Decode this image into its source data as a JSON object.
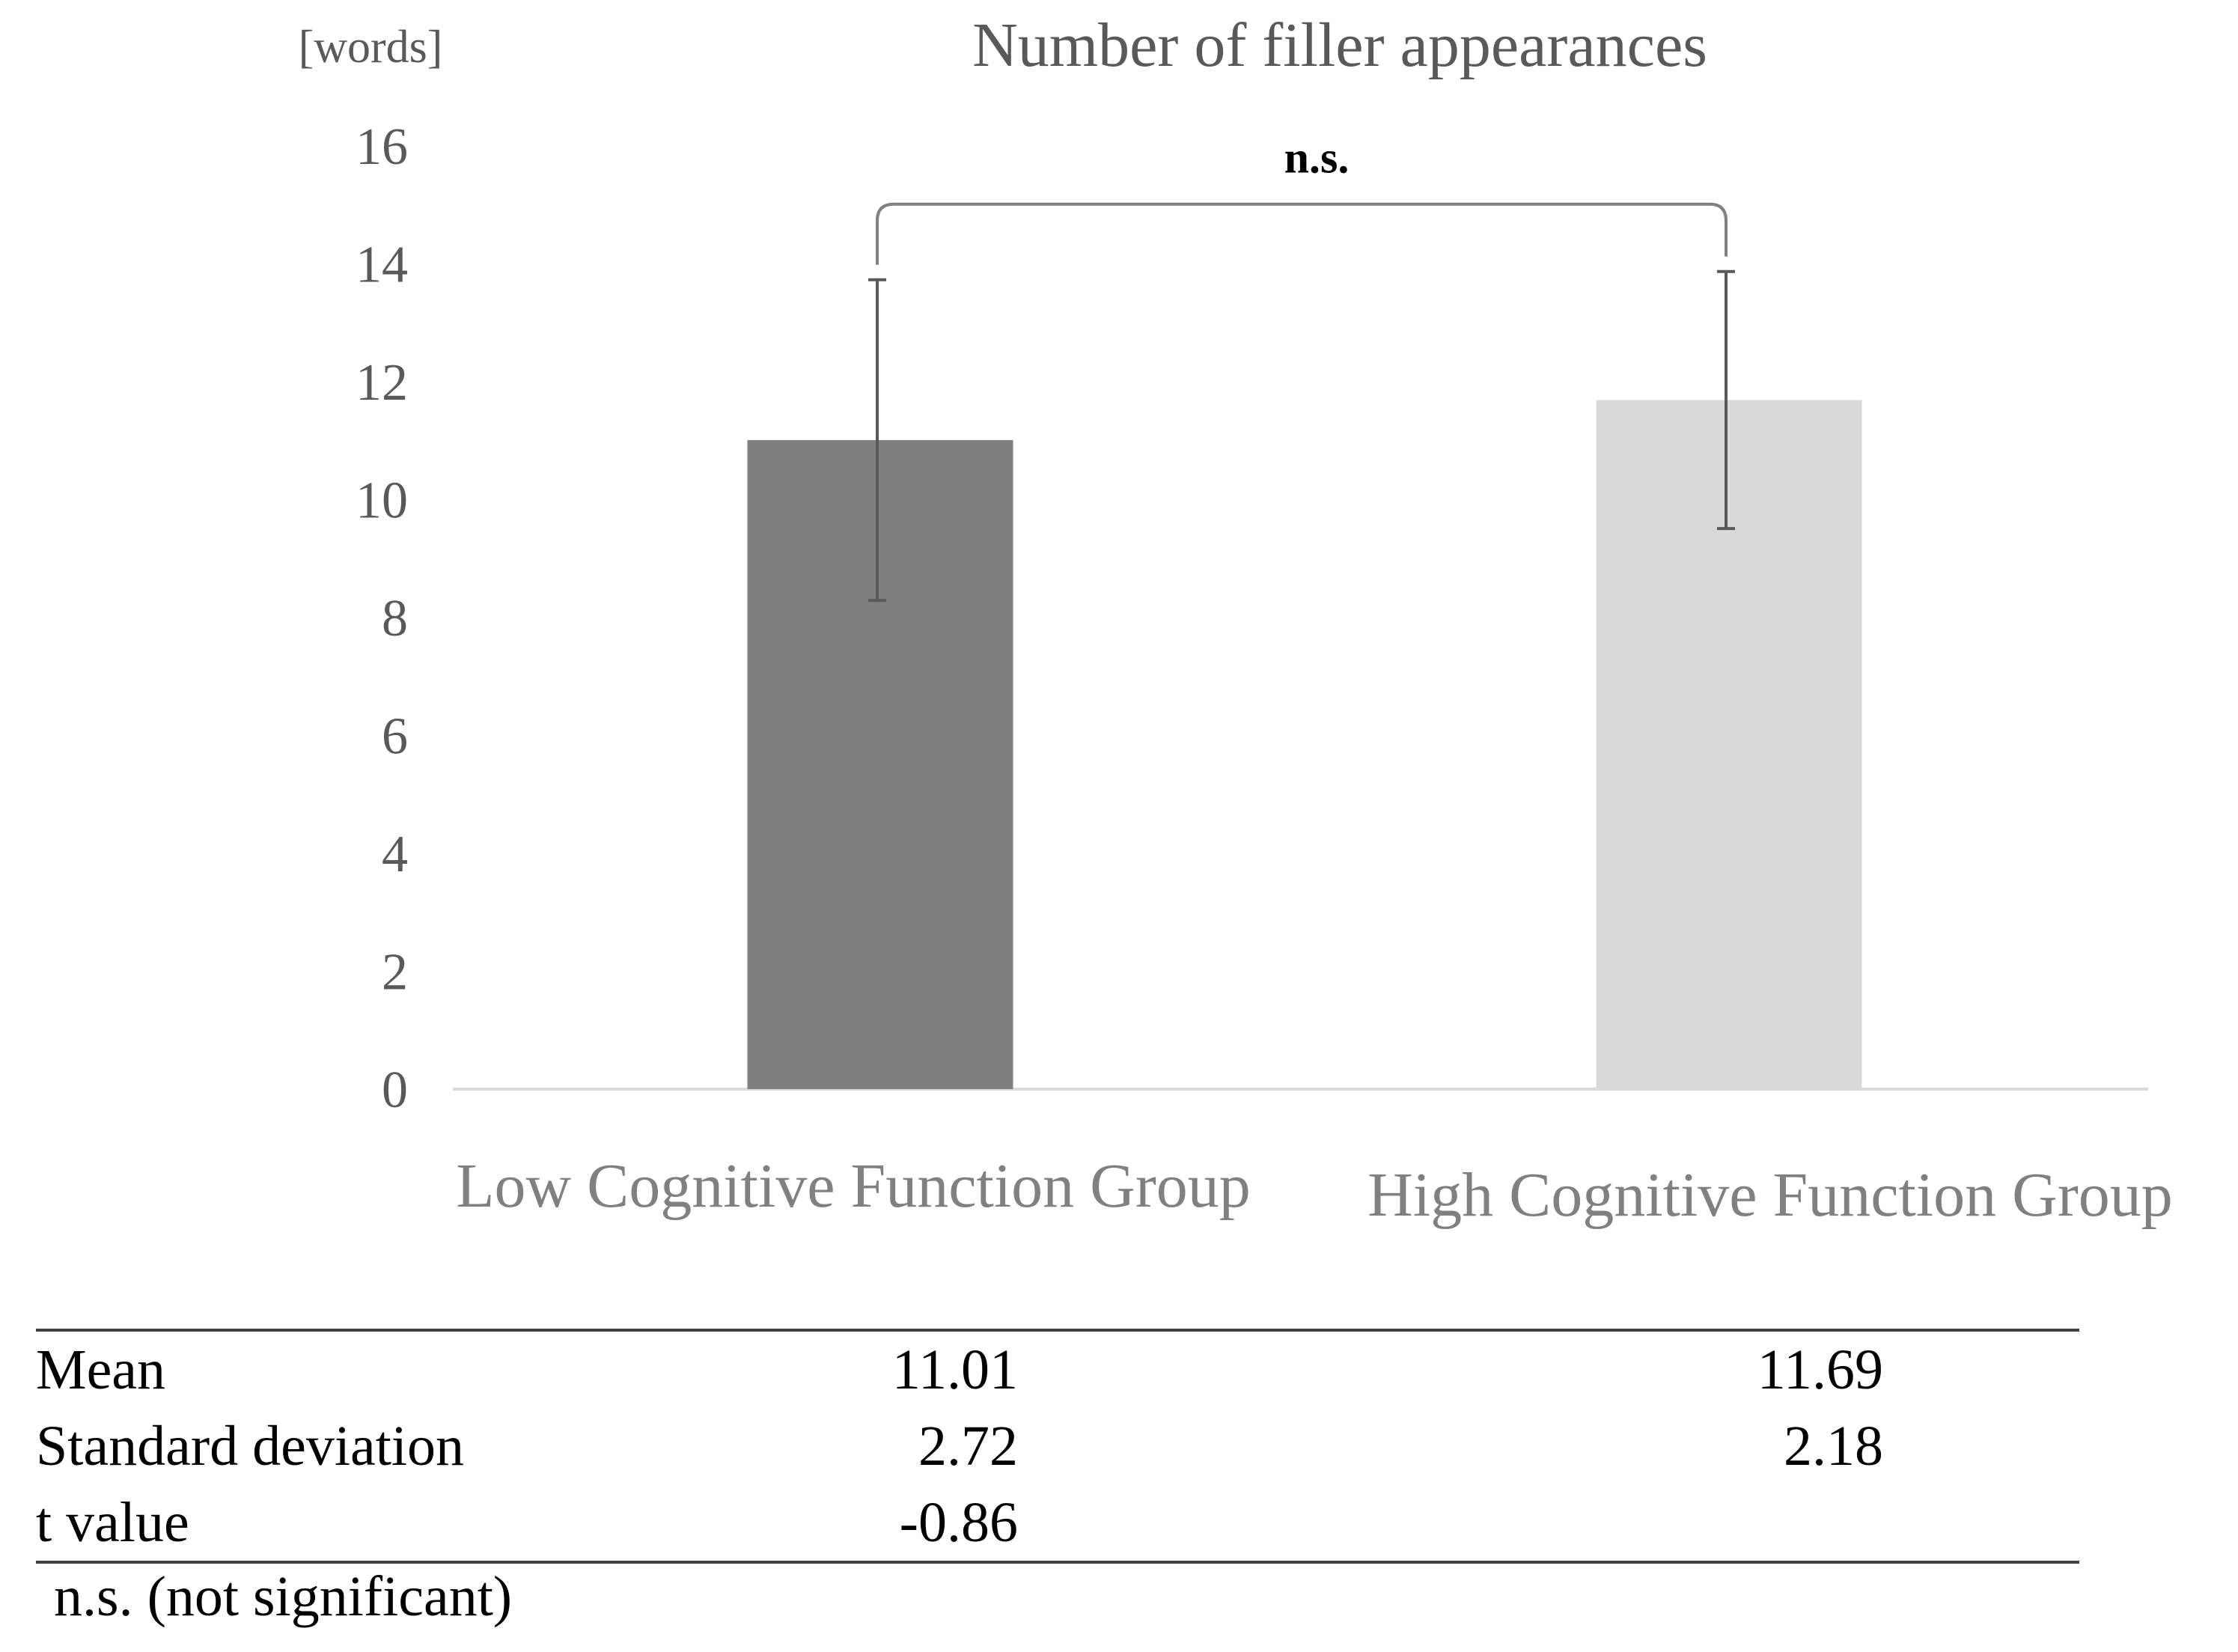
{
  "chart_data": {
    "type": "bar",
    "title": "Number of filler appearances",
    "ylabel": "[words]",
    "xlabel": "",
    "categories": [
      "Low Cognitive Function Group",
      "High Cognitive Function Group"
    ],
    "values": [
      11.01,
      11.69
    ],
    "error": [
      2.72,
      2.18
    ],
    "colors": [
      "#7f7f7f",
      "#d9d9d9"
    ],
    "ylim": [
      0,
      16
    ],
    "yticks": [
      0,
      2,
      4,
      6,
      8,
      10,
      12,
      14,
      16
    ],
    "grid": false,
    "legend": "none",
    "annotation": "n.s."
  },
  "table": {
    "rows": [
      {
        "label": "Mean",
        "low": "11.01",
        "high": "11.69"
      },
      {
        "label": "Standard deviation",
        "low": "2.72",
        "high": "2.18"
      },
      {
        "label": "t value",
        "low": "-0.86",
        "high": ""
      }
    ]
  },
  "footnote": "n.s. (not significant)"
}
